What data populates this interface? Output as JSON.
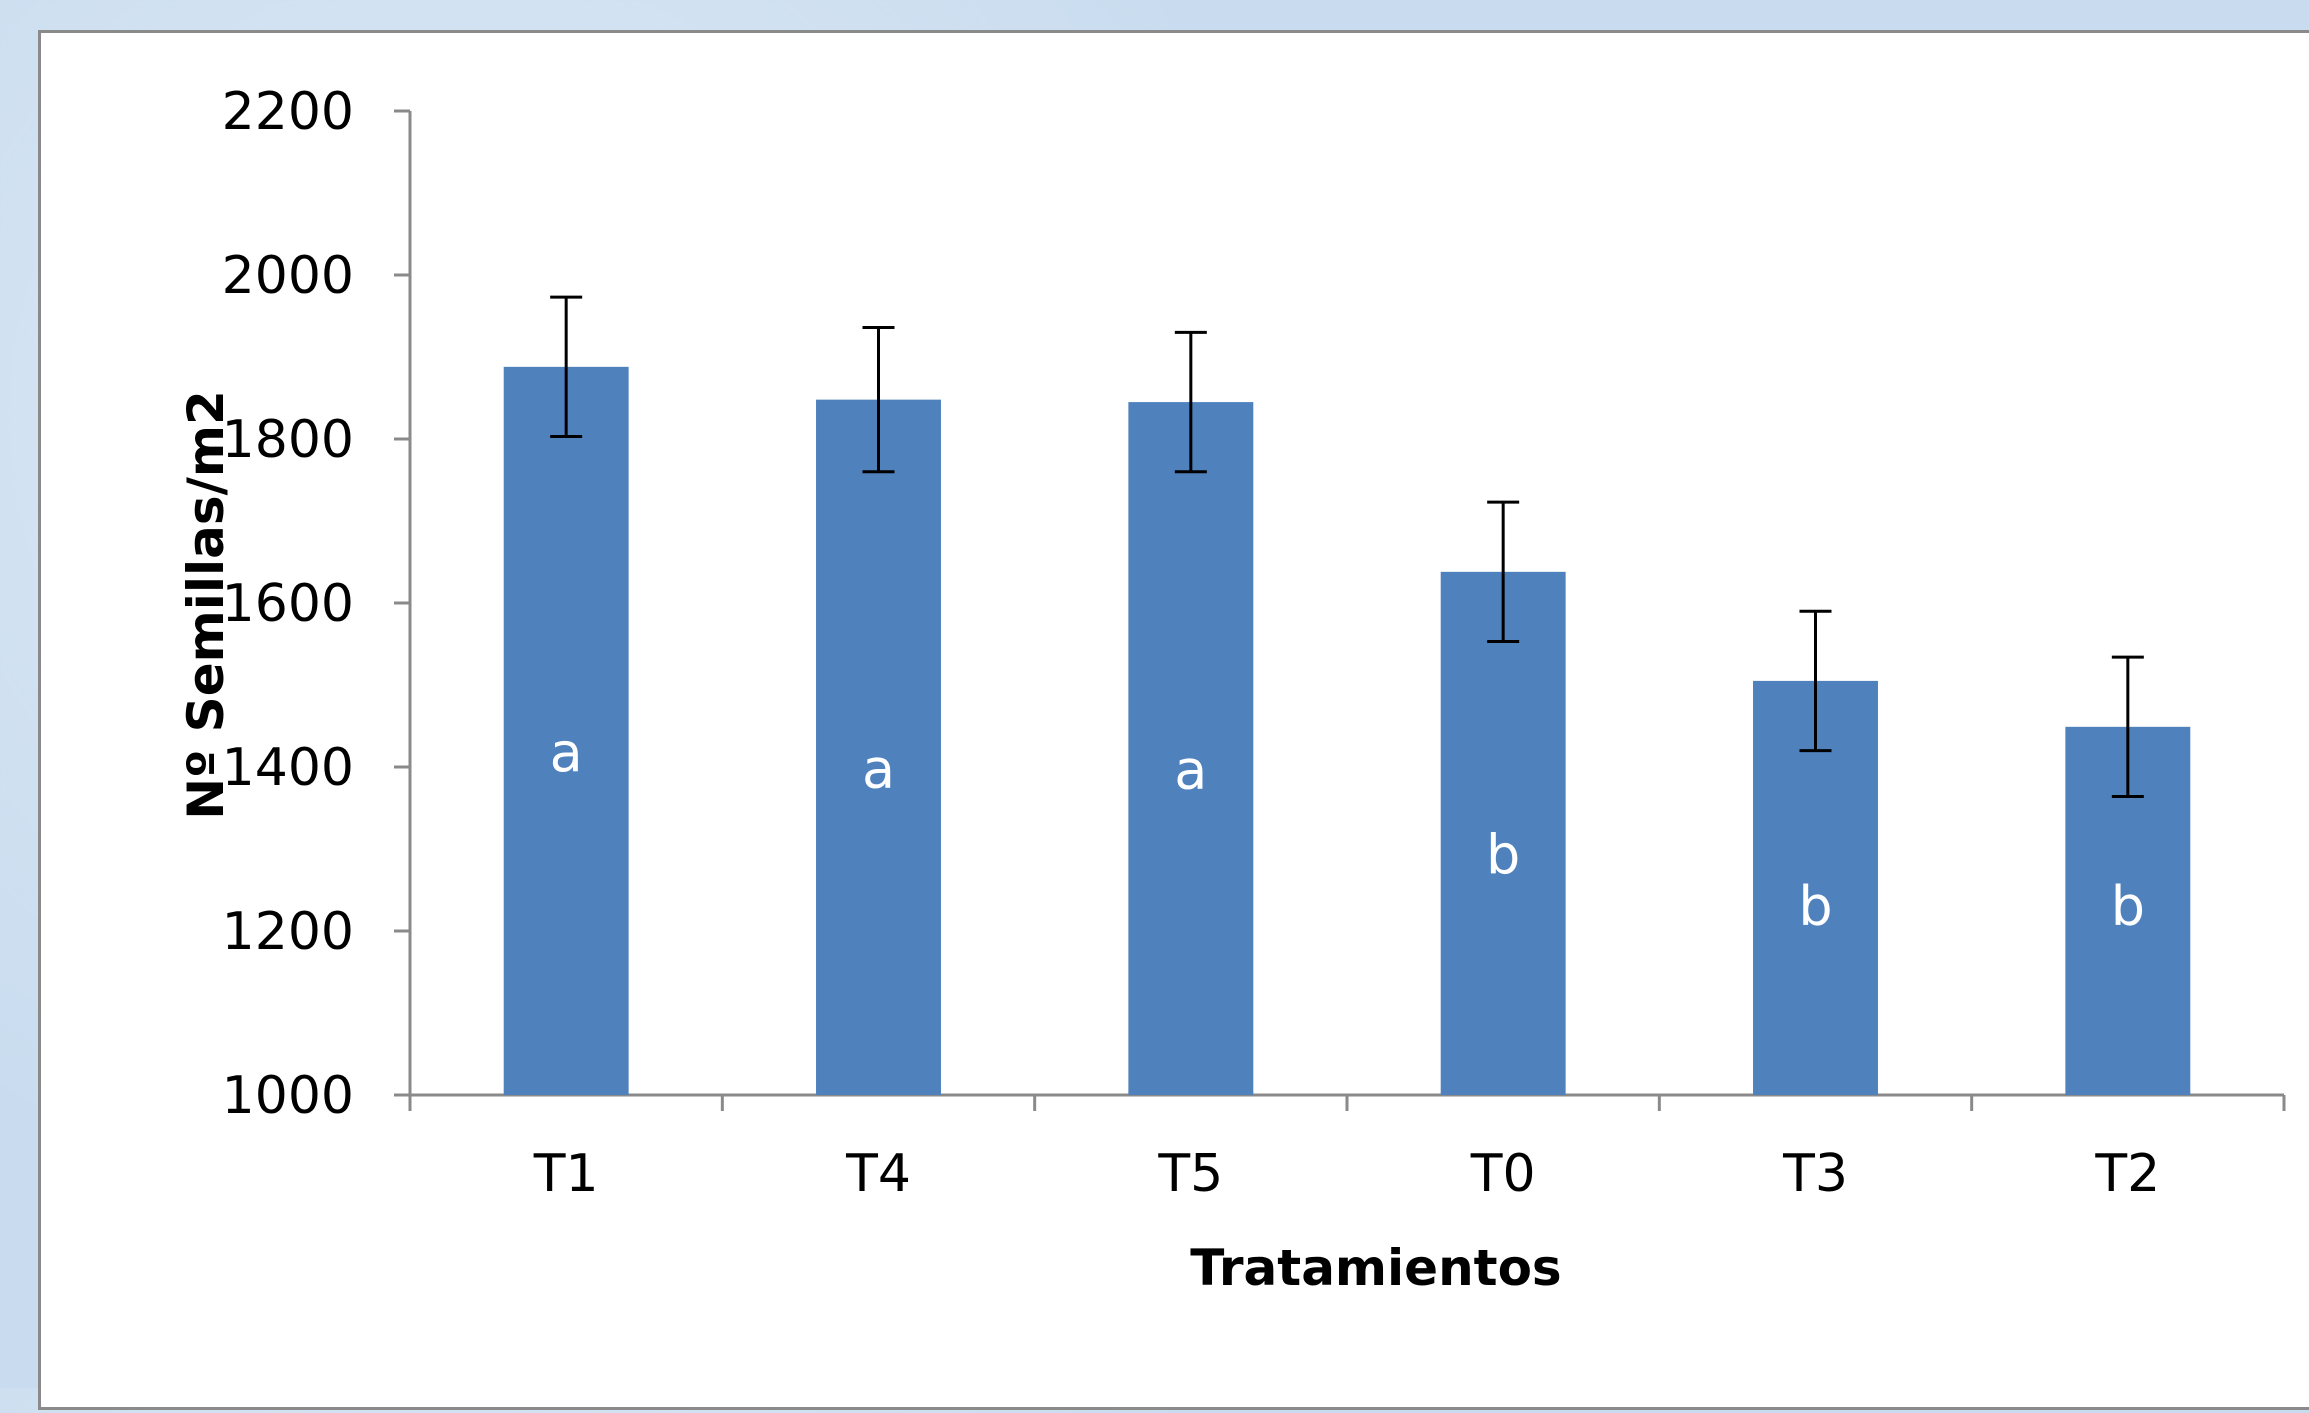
{
  "chart_data": {
    "type": "bar",
    "categories": [
      "T1",
      "T4",
      "T5",
      "T0",
      "T3",
      "T2"
    ],
    "values": [
      1888,
      1848,
      1845,
      1638,
      1505,
      1449
    ],
    "error": [
      85,
      88,
      85,
      85,
      85,
      85
    ],
    "letters": [
      "a",
      "a",
      "a",
      "b",
      "b",
      "b"
    ],
    "xlabel": "Tratamientos",
    "ylabel": "Nº Semillas/m2",
    "ylim": [
      1000,
      2200
    ],
    "yticks": [
      "1000",
      "1200",
      "1400",
      "1600",
      "1800",
      "2000",
      "2200"
    ],
    "bar_color": "#4f81bd",
    "grid": false
  }
}
